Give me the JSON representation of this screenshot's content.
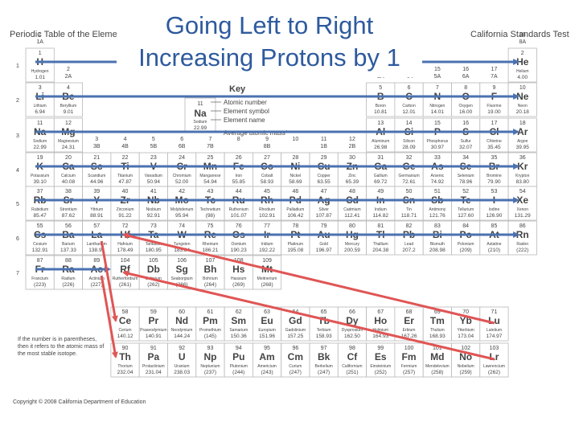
{
  "slide": {
    "title_line1": "Going Left to Right",
    "title_line2": "Increasing Protons by 1",
    "header_left": "Periodic Table of the Eleme",
    "header_right": "California Standards Test",
    "copyright": "Copyright © 2008 California Department of Education",
    "footnote": "If the number is in parentheses, then it refers to the atomic mass of the most stable isotope."
  },
  "key": {
    "label": "Key",
    "example_number": "11",
    "example_symbol": "Na",
    "example_name": "Sodium",
    "example_mass": "22.99",
    "atomic_number": "Atomic number",
    "element_symbol": "Element symbol",
    "element_name": "Element name",
    "average_mass": "Average atomic mass*"
  },
  "period_numbers": [
    "1",
    "2",
    "3",
    "4",
    "5",
    "6",
    "7"
  ],
  "group_labels": [
    {
      "g": 1,
      "n": "1",
      "a": "1A"
    },
    {
      "g": 2,
      "n": "2",
      "a": "2A"
    },
    {
      "g": 3,
      "n": "3",
      "a": "3B"
    },
    {
      "g": 4,
      "n": "4",
      "a": "4B"
    },
    {
      "g": 5,
      "n": "5",
      "a": "5B"
    },
    {
      "g": 6,
      "n": "6",
      "a": "6B"
    },
    {
      "g": 7,
      "n": "7",
      "a": "7B"
    },
    {
      "g": 8,
      "n": "8",
      "a": ""
    },
    {
      "g": 9,
      "n": "9",
      "a": "8B"
    },
    {
      "g": 10,
      "n": "10",
      "a": ""
    },
    {
      "g": 11,
      "n": "11",
      "a": "1B"
    },
    {
      "g": 12,
      "n": "12",
      "a": "2B"
    },
    {
      "g": 13,
      "n": "13",
      "a": "3A"
    },
    {
      "g": 14,
      "n": "14",
      "a": "4A"
    },
    {
      "g": 15,
      "n": "15",
      "a": "5A"
    },
    {
      "g": 16,
      "n": "16",
      "a": "6A"
    },
    {
      "g": 17,
      "n": "17",
      "a": "7A"
    },
    {
      "g": 18,
      "n": "18",
      "a": "8A"
    }
  ],
  "elements": [
    {
      "n": "1",
      "s": "H",
      "name": "Hydrogen",
      "m": "1.01",
      "p": 1,
      "g": 1
    },
    {
      "n": "2",
      "s": "He",
      "name": "Helium",
      "m": "4.00",
      "p": 1,
      "g": 18
    },
    {
      "n": "3",
      "s": "Li",
      "name": "Lithium",
      "m": "6.94",
      "p": 2,
      "g": 1
    },
    {
      "n": "4",
      "s": "Be",
      "name": "Beryllium",
      "m": "9.01",
      "p": 2,
      "g": 2
    },
    {
      "n": "5",
      "s": "B",
      "name": "Boron",
      "m": "10.81",
      "p": 2,
      "g": 13
    },
    {
      "n": "6",
      "s": "C",
      "name": "Carbon",
      "m": "12.01",
      "p": 2,
      "g": 14
    },
    {
      "n": "7",
      "s": "N",
      "name": "Nitrogen",
      "m": "14.01",
      "p": 2,
      "g": 15
    },
    {
      "n": "8",
      "s": "O",
      "name": "Oxygen",
      "m": "16.00",
      "p": 2,
      "g": 16
    },
    {
      "n": "9",
      "s": "F",
      "name": "Fluorine",
      "m": "19.00",
      "p": 2,
      "g": 17
    },
    {
      "n": "10",
      "s": "Ne",
      "name": "Neon",
      "m": "20.18",
      "p": 2,
      "g": 18
    },
    {
      "n": "11",
      "s": "Na",
      "name": "Sodium",
      "m": "22.99",
      "p": 3,
      "g": 1
    },
    {
      "n": "12",
      "s": "Mg",
      "name": "Magnesium",
      "m": "24.31",
      "p": 3,
      "g": 2
    },
    {
      "n": "13",
      "s": "Al",
      "name": "Aluminum",
      "m": "26.98",
      "p": 3,
      "g": 13
    },
    {
      "n": "14",
      "s": "Si",
      "name": "Silicon",
      "m": "28.09",
      "p": 3,
      "g": 14
    },
    {
      "n": "15",
      "s": "P",
      "name": "Phosphorus",
      "m": "30.97",
      "p": 3,
      "g": 15
    },
    {
      "n": "16",
      "s": "S",
      "name": "Sulfur",
      "m": "32.07",
      "p": 3,
      "g": 16
    },
    {
      "n": "17",
      "s": "Cl",
      "name": "Chlorine",
      "m": "35.45",
      "p": 3,
      "g": 17
    },
    {
      "n": "18",
      "s": "Ar",
      "name": "Argon",
      "m": "39.95",
      "p": 3,
      "g": 18
    },
    {
      "n": "19",
      "s": "K",
      "name": "Potassium",
      "m": "39.10",
      "p": 4,
      "g": 1
    },
    {
      "n": "20",
      "s": "Ca",
      "name": "Calcium",
      "m": "40.08",
      "p": 4,
      "g": 2
    },
    {
      "n": "21",
      "s": "Sc",
      "name": "Scandium",
      "m": "44.96",
      "p": 4,
      "g": 3
    },
    {
      "n": "22",
      "s": "Ti",
      "name": "Titanium",
      "m": "47.87",
      "p": 4,
      "g": 4
    },
    {
      "n": "23",
      "s": "V",
      "name": "Vanadium",
      "m": "50.94",
      "p": 4,
      "g": 5
    },
    {
      "n": "24",
      "s": "Cr",
      "name": "Chromium",
      "m": "52.00",
      "p": 4,
      "g": 6
    },
    {
      "n": "25",
      "s": "Mn",
      "name": "Manganese",
      "m": "54.94",
      "p": 4,
      "g": 7
    },
    {
      "n": "26",
      "s": "Fe",
      "name": "Iron",
      "m": "55.85",
      "p": 4,
      "g": 8
    },
    {
      "n": "27",
      "s": "Co",
      "name": "Cobalt",
      "m": "58.93",
      "p": 4,
      "g": 9
    },
    {
      "n": "28",
      "s": "Ni",
      "name": "Nickel",
      "m": "58.69",
      "p": 4,
      "g": 10
    },
    {
      "n": "29",
      "s": "Cu",
      "name": "Copper",
      "m": "63.55",
      "p": 4,
      "g": 11
    },
    {
      "n": "30",
      "s": "Zn",
      "name": "Zinc",
      "m": "65.39",
      "p": 4,
      "g": 12
    },
    {
      "n": "31",
      "s": "Ga",
      "name": "Gallium",
      "m": "69.72",
      "p": 4,
      "g": 13
    },
    {
      "n": "32",
      "s": "Ge",
      "name": "Germanium",
      "m": "72.61",
      "p": 4,
      "g": 14
    },
    {
      "n": "33",
      "s": "As",
      "name": "Arsenic",
      "m": "74.92",
      "p": 4,
      "g": 15
    },
    {
      "n": "34",
      "s": "Se",
      "name": "Selenium",
      "m": "78.96",
      "p": 4,
      "g": 16
    },
    {
      "n": "35",
      "s": "Br",
      "name": "Bromine",
      "m": "79.90",
      "p": 4,
      "g": 17
    },
    {
      "n": "36",
      "s": "Kr",
      "name": "Krypton",
      "m": "83.80",
      "p": 4,
      "g": 18
    },
    {
      "n": "37",
      "s": "Rb",
      "name": "Rubidium",
      "m": "85.47",
      "p": 5,
      "g": 1
    },
    {
      "n": "38",
      "s": "Sr",
      "name": "Strontium",
      "m": "87.62",
      "p": 5,
      "g": 2
    },
    {
      "n": "39",
      "s": "Y",
      "name": "Yttrium",
      "m": "88.91",
      "p": 5,
      "g": 3
    },
    {
      "n": "40",
      "s": "Zr",
      "name": "Zirconium",
      "m": "91.22",
      "p": 5,
      "g": 4
    },
    {
      "n": "41",
      "s": "Nb",
      "name": "Niobium",
      "m": "92.91",
      "p": 5,
      "g": 5
    },
    {
      "n": "42",
      "s": "Mo",
      "name": "Molybdenum",
      "m": "95.94",
      "p": 5,
      "g": 6
    },
    {
      "n": "43",
      "s": "Tc",
      "name": "Technetium",
      "m": "(98)",
      "p": 5,
      "g": 7
    },
    {
      "n": "44",
      "s": "Ru",
      "name": "Ruthenium",
      "m": "101.07",
      "p": 5,
      "g": 8
    },
    {
      "n": "45",
      "s": "Rh",
      "name": "Rhodium",
      "m": "102.91",
      "p": 5,
      "g": 9
    },
    {
      "n": "46",
      "s": "Pd",
      "name": "Palladium",
      "m": "106.42",
      "p": 5,
      "g": 10
    },
    {
      "n": "47",
      "s": "Ag",
      "name": "Silver",
      "m": "107.87",
      "p": 5,
      "g": 11
    },
    {
      "n": "48",
      "s": "Cd",
      "name": "Cadmium",
      "m": "112.41",
      "p": 5,
      "g": 12
    },
    {
      "n": "49",
      "s": "In",
      "name": "Indium",
      "m": "114.82",
      "p": 5,
      "g": 13
    },
    {
      "n": "50",
      "s": "Sn",
      "name": "Tin",
      "m": "118.71",
      "p": 5,
      "g": 14
    },
    {
      "n": "51",
      "s": "Sb",
      "name": "Antimony",
      "m": "121.76",
      "p": 5,
      "g": 15
    },
    {
      "n": "52",
      "s": "Te",
      "name": "Tellurium",
      "m": "127.60",
      "p": 5,
      "g": 16
    },
    {
      "n": "53",
      "s": "I",
      "name": "Iodine",
      "m": "126.90",
      "p": 5,
      "g": 17
    },
    {
      "n": "54",
      "s": "Xe",
      "name": "Xenon",
      "m": "131.29",
      "p": 5,
      "g": 18
    },
    {
      "n": "55",
      "s": "Cs",
      "name": "Cesium",
      "m": "132.91",
      "p": 6,
      "g": 1
    },
    {
      "n": "56",
      "s": "Ba",
      "name": "Barium",
      "m": "137.33",
      "p": 6,
      "g": 2
    },
    {
      "n": "57",
      "s": "La",
      "name": "Lanthanum",
      "m": "138.91",
      "p": 6,
      "g": 3
    },
    {
      "n": "72",
      "s": "Hf",
      "name": "Hafnium",
      "m": "178.49",
      "p": 6,
      "g": 4
    },
    {
      "n": "73",
      "s": "Ta",
      "name": "Tantalum",
      "m": "180.95",
      "p": 6,
      "g": 5
    },
    {
      "n": "74",
      "s": "W",
      "name": "Tungsten",
      "m": "183.84",
      "p": 6,
      "g": 6
    },
    {
      "n": "75",
      "s": "Re",
      "name": "Rhenium",
      "m": "186.21",
      "p": 6,
      "g": 7
    },
    {
      "n": "76",
      "s": "Os",
      "name": "Osmium",
      "m": "190.23",
      "p": 6,
      "g": 8
    },
    {
      "n": "77",
      "s": "Ir",
      "name": "Iridium",
      "m": "192.22",
      "p": 6,
      "g": 9
    },
    {
      "n": "78",
      "s": "Pt",
      "name": "Platinum",
      "m": "195.08",
      "p": 6,
      "g": 10
    },
    {
      "n": "79",
      "s": "Au",
      "name": "Gold",
      "m": "196.97",
      "p": 6,
      "g": 11
    },
    {
      "n": "80",
      "s": "Hg",
      "name": "Mercury",
      "m": "200.59",
      "p": 6,
      "g": 12
    },
    {
      "n": "81",
      "s": "Tl",
      "name": "Thallium",
      "m": "204.38",
      "p": 6,
      "g": 13
    },
    {
      "n": "82",
      "s": "Pb",
      "name": "Lead",
      "m": "207.2",
      "p": 6,
      "g": 14
    },
    {
      "n": "83",
      "s": "Bi",
      "name": "Bismuth",
      "m": "208.98",
      "p": 6,
      "g": 15
    },
    {
      "n": "84",
      "s": "Po",
      "name": "Polonium",
      "m": "(209)",
      "p": 6,
      "g": 16
    },
    {
      "n": "85",
      "s": "At",
      "name": "Astatine",
      "m": "(210)",
      "p": 6,
      "g": 17
    },
    {
      "n": "86",
      "s": "Rn",
      "name": "Radon",
      "m": "(222)",
      "p": 6,
      "g": 18
    },
    {
      "n": "87",
      "s": "Fr",
      "name": "Francium",
      "m": "(223)",
      "p": 7,
      "g": 1
    },
    {
      "n": "88",
      "s": "Ra",
      "name": "Radium",
      "m": "(226)",
      "p": 7,
      "g": 2
    },
    {
      "n": "89",
      "s": "Ac",
      "name": "Actinium",
      "m": "(227)",
      "p": 7,
      "g": 3
    },
    {
      "n": "104",
      "s": "Rf",
      "name": "Rutherfordium",
      "m": "(261)",
      "p": 7,
      "g": 4
    },
    {
      "n": "105",
      "s": "Db",
      "name": "Dubnium",
      "m": "(262)",
      "p": 7,
      "g": 5
    },
    {
      "n": "106",
      "s": "Sg",
      "name": "Seaborgium",
      "m": "(266)",
      "p": 7,
      "g": 6
    },
    {
      "n": "107",
      "s": "Bh",
      "name": "Bohrium",
      "m": "(264)",
      "p": 7,
      "g": 7
    },
    {
      "n": "108",
      "s": "Hs",
      "name": "Hassium",
      "m": "(269)",
      "p": 7,
      "g": 8
    },
    {
      "n": "109",
      "s": "Mt",
      "name": "Meitnerium",
      "m": "(268)",
      "p": 7,
      "g": 9
    },
    {
      "n": "58",
      "s": "Ce",
      "name": "Cerium",
      "m": "140.12",
      "p": 8,
      "g": 4
    },
    {
      "n": "59",
      "s": "Pr",
      "name": "Praseodymium",
      "m": "140.91",
      "p": 8,
      "g": 5
    },
    {
      "n": "60",
      "s": "Nd",
      "name": "Neodymium",
      "m": "144.24",
      "p": 8,
      "g": 6
    },
    {
      "n": "61",
      "s": "Pm",
      "name": "Promethium",
      "m": "(145)",
      "p": 8,
      "g": 7
    },
    {
      "n": "62",
      "s": "Sm",
      "name": "Samarium",
      "m": "150.36",
      "p": 8,
      "g": 8
    },
    {
      "n": "63",
      "s": "Eu",
      "name": "Europium",
      "m": "151.96",
      "p": 8,
      "g": 9
    },
    {
      "n": "64",
      "s": "Gd",
      "name": "Gadolinium",
      "m": "157.25",
      "p": 8,
      "g": 10
    },
    {
      "n": "65",
      "s": "Tb",
      "name": "Terbium",
      "m": "158.93",
      "p": 8,
      "g": 11
    },
    {
      "n": "66",
      "s": "Dy",
      "name": "Dysprosium",
      "m": "162.50",
      "p": 8,
      "g": 12
    },
    {
      "n": "67",
      "s": "Ho",
      "name": "Holmium",
      "m": "164.93",
      "p": 8,
      "g": 13
    },
    {
      "n": "68",
      "s": "Er",
      "name": "Erbium",
      "m": "167.26",
      "p": 8,
      "g": 14
    },
    {
      "n": "69",
      "s": "Tm",
      "name": "Thulium",
      "m": "168.93",
      "p": 8,
      "g": 15
    },
    {
      "n": "70",
      "s": "Yb",
      "name": "Ytterbium",
      "m": "173.04",
      "p": 8,
      "g": 16
    },
    {
      "n": "71",
      "s": "Lu",
      "name": "Lutetium",
      "m": "174.97",
      "p": 8,
      "g": 17
    },
    {
      "n": "90",
      "s": "Th",
      "name": "Thorium",
      "m": "232.04",
      "p": 9,
      "g": 4
    },
    {
      "n": "91",
      "s": "Pa",
      "name": "Protactinium",
      "m": "231.04",
      "p": 9,
      "g": 5
    },
    {
      "n": "92",
      "s": "U",
      "name": "Uranium",
      "m": "238.03",
      "p": 9,
      "g": 6
    },
    {
      "n": "93",
      "s": "Np",
      "name": "Neptunium",
      "m": "(237)",
      "p": 9,
      "g": 7
    },
    {
      "n": "94",
      "s": "Pu",
      "name": "Plutonium",
      "m": "(244)",
      "p": 9,
      "g": 8
    },
    {
      "n": "95",
      "s": "Am",
      "name": "Americium",
      "m": "(243)",
      "p": 9,
      "g": 9
    },
    {
      "n": "96",
      "s": "Cm",
      "name": "Curium",
      "m": "(247)",
      "p": 9,
      "g": 10
    },
    {
      "n": "97",
      "s": "Bk",
      "name": "Berkelium",
      "m": "(247)",
      "p": 9,
      "g": 11
    },
    {
      "n": "98",
      "s": "Cf",
      "name": "Californium",
      "m": "(251)",
      "p": 9,
      "g": 12
    },
    {
      "n": "99",
      "s": "Es",
      "name": "Einsteinium",
      "m": "(252)",
      "p": 9,
      "g": 13
    },
    {
      "n": "100",
      "s": "Fm",
      "name": "Fermium",
      "m": "(257)",
      "p": 9,
      "g": 14
    },
    {
      "n": "101",
      "s": "Md",
      "name": "Mendelevium",
      "m": "(258)",
      "p": 9,
      "g": 15
    },
    {
      "n": "102",
      "s": "No",
      "name": "Nobelium",
      "m": "(259)",
      "p": 9,
      "g": 16
    },
    {
      "n": "103",
      "s": "Lr",
      "name": "Lawrencium",
      "m": "(262)",
      "p": 9,
      "g": 17
    }
  ],
  "colors": {
    "arrow_blue": "#4a72b0",
    "arrow_red": "#e05555",
    "title_blue": "#2e5a9e",
    "cell_border": "#b8b8b8",
    "text_gray": "#444444"
  }
}
